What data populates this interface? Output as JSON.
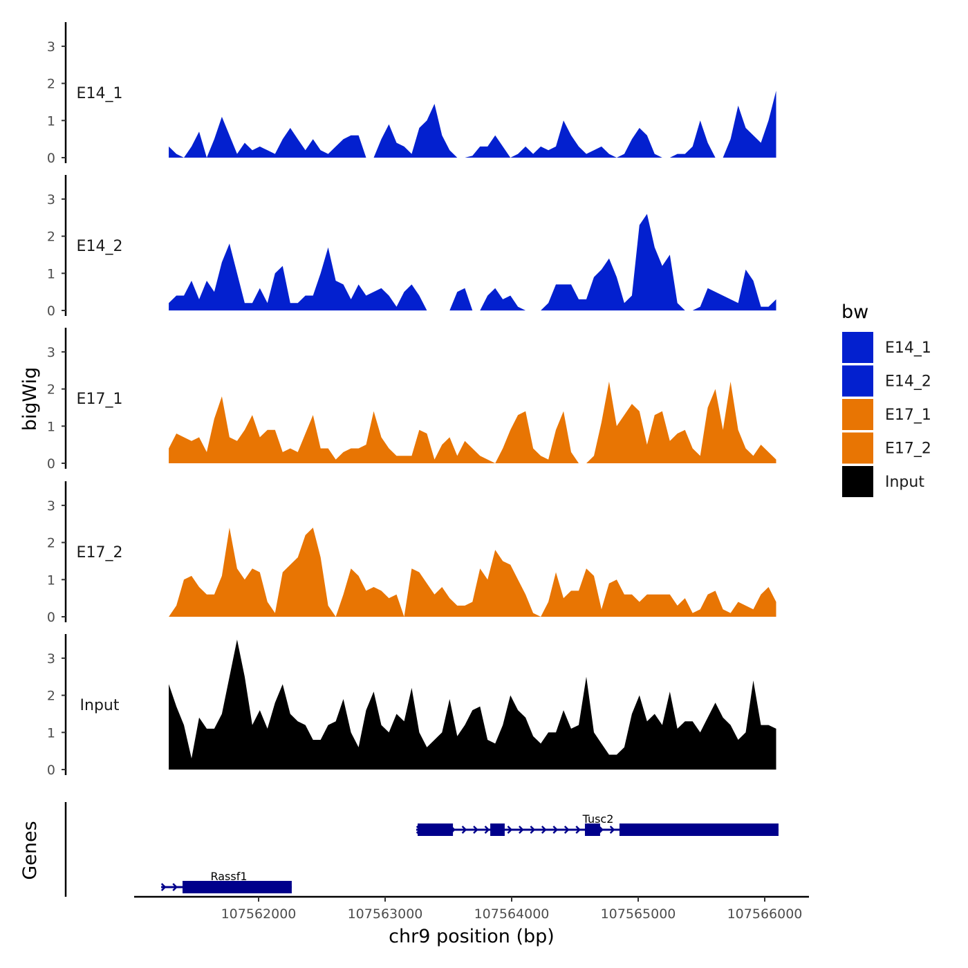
{
  "chart_data": {
    "type": "area",
    "xlabel": "chr9 position (bp)",
    "ylabel": "bigWig",
    "genes_label": "Genes",
    "x_ticks": [
      107562000,
      107563000,
      107564000,
      107565000,
      107566000
    ],
    "x_tick_labels": [
      "107562000",
      "107563000",
      "107564000",
      "107565000",
      "107566000"
    ],
    "y_ticks": [
      0,
      1,
      2,
      3
    ],
    "y_tick_labels": [
      "0",
      "1",
      "2",
      "3"
    ],
    "ylim": [
      0,
      3.6
    ],
    "x_start": 107561290,
    "x_step": 60,
    "legend": {
      "title": "bw",
      "position": "right",
      "entries": [
        {
          "label": "E14_1",
          "color": "#0320CF"
        },
        {
          "label": "E14_2",
          "color": "#0320CF"
        },
        {
          "label": "E17_1",
          "color": "#E87503"
        },
        {
          "label": "E17_2",
          "color": "#E87503"
        },
        {
          "label": "Input",
          "color": "#000000"
        }
      ]
    },
    "series": [
      {
        "name": "E14_1",
        "color": "#0320CF",
        "values": [
          0.3,
          0.1,
          0,
          0.3,
          0.7,
          0,
          0.5,
          1.1,
          0.6,
          0.1,
          0.4,
          0.2,
          0.3,
          0.2,
          0.1,
          0.5,
          0.8,
          0.5,
          0.2,
          0.5,
          0.2,
          0.1,
          0.3,
          0.5,
          0.6,
          0.6,
          0,
          0,
          0.5,
          0.9,
          0.4,
          0.3,
          0.1,
          0.8,
          1.0,
          1.45,
          0.6,
          0.2,
          0,
          0,
          0.05,
          0.3,
          0.3,
          0.6,
          0.3,
          0,
          0.1,
          0.3,
          0.1,
          0.3,
          0.2,
          0.3,
          1.0,
          0.6,
          0.3,
          0.1,
          0.2,
          0.3,
          0.1,
          0,
          0.1,
          0.5,
          0.8,
          0.6,
          0.1,
          0,
          0,
          0.1,
          0.1,
          0.3,
          1.0,
          0.4,
          0,
          0,
          0.5,
          1.4,
          0.8,
          0.6,
          0.4,
          1.0,
          1.8
        ]
      },
      {
        "name": "E14_2",
        "color": "#0320CF",
        "values": [
          0.2,
          0.4,
          0.4,
          0.8,
          0.3,
          0.8,
          0.5,
          1.3,
          1.8,
          1.0,
          0.2,
          0.2,
          0.6,
          0.2,
          1.0,
          1.2,
          0.2,
          0.2,
          0.4,
          0.4,
          1.0,
          1.7,
          0.8,
          0.7,
          0.3,
          0.7,
          0.4,
          0.5,
          0.6,
          0.4,
          0.1,
          0.5,
          0.7,
          0.4,
          0,
          0,
          0,
          0,
          0.5,
          0.6,
          0,
          0,
          0.4,
          0.6,
          0.3,
          0.4,
          0.1,
          0,
          0,
          0,
          0.2,
          0.7,
          0.7,
          0.7,
          0.3,
          0.3,
          0.9,
          1.1,
          1.4,
          0.9,
          0.2,
          0.4,
          2.3,
          2.6,
          1.7,
          1.2,
          1.5,
          0.2,
          0,
          0,
          0.1,
          0.6,
          0.5,
          0.4,
          0.3,
          0.2,
          1.1,
          0.8,
          0.1,
          0.1,
          0.3
        ]
      },
      {
        "name": "E17_1",
        "color": "#E87503",
        "values": [
          0.4,
          0.8,
          0.7,
          0.6,
          0.7,
          0.3,
          1.2,
          1.8,
          0.7,
          0.6,
          0.9,
          1.3,
          0.7,
          0.9,
          0.9,
          0.3,
          0.4,
          0.3,
          0.8,
          1.3,
          0.4,
          0.4,
          0.1,
          0.3,
          0.4,
          0.4,
          0.5,
          1.4,
          0.7,
          0.4,
          0.2,
          0.2,
          0.2,
          0.9,
          0.8,
          0.1,
          0.5,
          0.7,
          0.2,
          0.6,
          0.4,
          0.2,
          0.1,
          0,
          0.4,
          0.9,
          1.3,
          1.4,
          0.4,
          0.2,
          0.1,
          0.9,
          1.4,
          0.3,
          0,
          0,
          0.2,
          1.1,
          2.2,
          1.0,
          1.3,
          1.6,
          1.4,
          0.5,
          1.3,
          1.4,
          0.6,
          0.8,
          0.9,
          0.4,
          0.2,
          1.5,
          2.0,
          0.9,
          2.2,
          0.9,
          0.4,
          0.2,
          0.5,
          0.3,
          0.1
        ]
      },
      {
        "name": "E17_2",
        "color": "#E87503",
        "values": [
          0,
          0.3,
          1.0,
          1.1,
          0.8,
          0.6,
          0.6,
          1.1,
          2.4,
          1.3,
          1.0,
          1.3,
          1.2,
          0.4,
          0.1,
          1.2,
          1.4,
          1.6,
          2.2,
          2.4,
          1.6,
          0.3,
          0,
          0.6,
          1.3,
          1.1,
          0.7,
          0.8,
          0.7,
          0.5,
          0.6,
          0,
          1.3,
          1.2,
          0.9,
          0.6,
          0.8,
          0.5,
          0.3,
          0.3,
          0.4,
          1.3,
          1.0,
          1.8,
          1.5,
          1.4,
          1.0,
          0.6,
          0.1,
          0,
          0.4,
          1.2,
          0.5,
          0.7,
          0.7,
          1.3,
          1.1,
          0.2,
          0.9,
          1.0,
          0.6,
          0.6,
          0.4,
          0.6,
          0.6,
          0.6,
          0.6,
          0.3,
          0.5,
          0.1,
          0.2,
          0.6,
          0.7,
          0.2,
          0.1,
          0.4,
          0.3,
          0.2,
          0.6,
          0.8,
          0.4
        ]
      },
      {
        "name": "Input",
        "color": "#000000",
        "values": [
          2.3,
          1.7,
          1.2,
          0.3,
          1.4,
          1.1,
          1.1,
          1.5,
          2.5,
          3.5,
          2.5,
          1.2,
          1.6,
          1.1,
          1.8,
          2.3,
          1.5,
          1.3,
          1.2,
          0.8,
          0.8,
          1.2,
          1.3,
          1.9,
          1.0,
          0.6,
          1.6,
          2.1,
          1.2,
          1.0,
          1.5,
          1.3,
          2.2,
          1.0,
          0.6,
          0.8,
          1.0,
          1.9,
          0.9,
          1.2,
          1.6,
          1.7,
          0.8,
          0.7,
          1.2,
          2.0,
          1.6,
          1.4,
          0.9,
          0.7,
          1.0,
          1.0,
          1.6,
          1.1,
          1.2,
          2.5,
          1.0,
          0.7,
          0.4,
          0.4,
          0.6,
          1.5,
          2.0,
          1.3,
          1.5,
          1.2,
          2.1,
          1.1,
          1.3,
          1.3,
          1.0,
          1.4,
          1.8,
          1.4,
          1.2,
          0.8,
          1.0,
          2.4,
          1.2,
          1.2,
          1.1
        ]
      }
    ],
    "genes": [
      {
        "name": "Tusc2",
        "strand": "+",
        "start": 107563246,
        "end": 107566109,
        "exons": [
          [
            107563257,
            107563536
          ],
          [
            107563831,
            107563945
          ],
          [
            107564579,
            107564699
          ],
          [
            107564852,
            107566109
          ]
        ]
      },
      {
        "name": "Rassf1",
        "strand": "+",
        "start": 107561230,
        "end": 107562262,
        "exons": [
          [
            107561399,
            107562262
          ]
        ]
      }
    ],
    "gene_color": "#00008B"
  }
}
